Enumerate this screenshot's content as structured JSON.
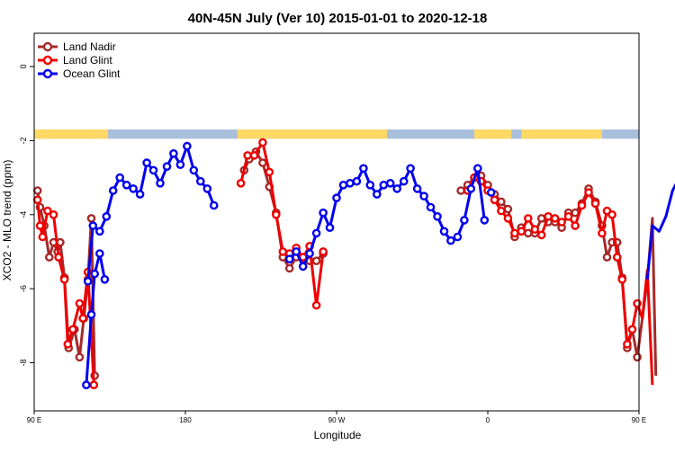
{
  "chart_data": {
    "type": "line",
    "title": "40N-45N July (Ver 10)   2015-01-01 to 2020-12-18",
    "xlabel": "Longitude",
    "ylabel": "XCO2 - MLO trend (ppm)",
    "xlim": [
      90,
      450
    ],
    "ylim": [
      -9.3,
      0.9
    ],
    "x_ticks": [
      {
        "value": 90,
        "label": "90 E"
      },
      {
        "value": 180,
        "label": "180"
      },
      {
        "value": 270,
        "label": "90 W"
      },
      {
        "value": 360,
        "label": "0"
      },
      {
        "value": 450,
        "label": "90 E"
      },
      {
        "value": 540,
        "label": "180"
      }
    ],
    "y_ticks": [
      {
        "value": 0,
        "label": "0"
      },
      {
        "value": -2,
        "label": "-2"
      },
      {
        "value": -4,
        "label": "-4"
      },
      {
        "value": -6,
        "label": "-6"
      },
      {
        "value": -8,
        "label": "-8"
      }
    ],
    "grid": false,
    "legend_position": "top-left",
    "land_mask_strip": {
      "y_range": [
        -1.95,
        -1.7
      ],
      "land_color": "#ffd966",
      "ocean_color": "#a8bfdc",
      "land_segments_lon": [
        [
          90,
          134
        ],
        [
          211,
          300
        ],
        [
          352,
          374
        ],
        [
          380,
          428
        ],
        [
          450,
          494
        ]
      ]
    },
    "series": [
      {
        "name": "Land Nadir",
        "color": "#a52a2a",
        "segments": [
          [
            [
              92,
              -3.35
            ],
            [
              93.5,
              -3.8
            ],
            [
              96,
              -4.3
            ],
            [
              99,
              -5.15
            ],
            [
              101.5,
              -4.75
            ],
            [
              104,
              -5.0
            ],
            [
              105.5,
              -4.75
            ],
            [
              108,
              -5.7
            ],
            [
              110.5,
              -7.6
            ],
            [
              114,
              -7.1
            ],
            [
              117,
              -7.85
            ],
            [
              119.5,
              -6.8
            ],
            [
              122,
              -5.75
            ],
            [
              124,
              -4.1
            ],
            [
              126,
              -8.35
            ]
          ],
          [
            [
              215,
              -2.8
            ],
            [
              218,
              -2.5
            ],
            [
              222,
              -2.3
            ],
            [
              226,
              -2.6
            ],
            [
              230,
              -3.25
            ],
            [
              234,
              -3.95
            ],
            [
              238,
              -5.15
            ],
            [
              242,
              -5.45
            ],
            [
              246,
              -5.15
            ],
            [
              250,
              -5.2
            ],
            [
              254,
              -5.25
            ],
            [
              258,
              -5.25
            ],
            [
              262,
              -5.05
            ]
          ],
          [
            [
              344,
              -3.35
            ],
            [
              348,
              -3.2
            ],
            [
              352,
              -3.0
            ],
            [
              356,
              -2.95
            ],
            [
              360,
              -3.2
            ],
            [
              364,
              -3.45
            ],
            [
              368,
              -3.65
            ],
            [
              372,
              -3.85
            ],
            [
              376,
              -4.6
            ],
            [
              380,
              -4.35
            ],
            [
              384,
              -4.5
            ],
            [
              388,
              -4.5
            ],
            [
              392,
              -4.1
            ],
            [
              396,
              -4.2
            ],
            [
              400,
              -4.2
            ],
            [
              404,
              -4.35
            ],
            [
              408,
              -3.95
            ],
            [
              412,
              -3.95
            ],
            [
              416,
              -3.7
            ],
            [
              420,
              -3.3
            ],
            [
              424,
              -3.65
            ],
            [
              428,
              -4.3
            ],
            [
              431,
              -5.15
            ],
            [
              434,
              -4.75
            ],
            [
              437,
              -4.75
            ],
            [
              440,
              -5.7
            ],
            [
              443,
              -7.6
            ],
            [
              446,
              -7.1
            ],
            [
              449,
              -7.85
            ],
            [
              452,
              -6.8
            ],
            [
              455,
              -5.75
            ],
            [
              458,
              -4.1
            ],
            [
              460,
              -8.35
            ]
          ]
        ]
      },
      {
        "name": "Land Glint",
        "color": "#ee0000",
        "segments": [
          [
            [
              92,
              -3.6
            ],
            [
              93.5,
              -4.3
            ],
            [
              95,
              -4.6
            ],
            [
              98,
              -3.9
            ],
            [
              101.5,
              -4.0
            ],
            [
              104.5,
              -5.15
            ],
            [
              108,
              -5.75
            ],
            [
              110,
              -7.5
            ],
            [
              113,
              -7.1
            ],
            [
              117,
              -6.4
            ],
            [
              119,
              -6.8
            ],
            [
              122,
              -5.55
            ],
            [
              125.5,
              -8.6
            ]
          ],
          [
            [
              213,
              -3.15
            ],
            [
              217,
              -2.4
            ],
            [
              221,
              -2.4
            ],
            [
              226,
              -2.05
            ],
            [
              230,
              -2.85
            ],
            [
              234,
              -4.0
            ],
            [
              238,
              -5.0
            ],
            [
              242,
              -5.05
            ],
            [
              246,
              -4.9
            ],
            [
              250,
              -5.15
            ],
            [
              254,
              -4.85
            ],
            [
              258,
              -6.45
            ],
            [
              262,
              -5.0
            ]
          ],
          [
            [
              348,
              -3.35
            ],
            [
              352,
              -3.0
            ],
            [
              356,
              -3.1
            ],
            [
              360,
              -3.35
            ],
            [
              364,
              -3.6
            ],
            [
              368,
              -3.9
            ],
            [
              372,
              -4.1
            ],
            [
              376,
              -4.5
            ],
            [
              380,
              -4.45
            ],
            [
              384,
              -4.1
            ],
            [
              388,
              -4.4
            ],
            [
              392,
              -4.55
            ],
            [
              396,
              -4.05
            ],
            [
              400,
              -4.1
            ],
            [
              404,
              -4.2
            ],
            [
              408,
              -4.05
            ],
            [
              412,
              -4.3
            ],
            [
              416,
              -3.75
            ],
            [
              420,
              -3.4
            ],
            [
              424,
              -3.7
            ],
            [
              428,
              -4.5
            ],
            [
              431,
              -3.9
            ],
            [
              434,
              -4.0
            ],
            [
              437,
              -5.15
            ],
            [
              440,
              -5.75
            ],
            [
              443,
              -7.5
            ],
            [
              446,
              -7.1
            ],
            [
              449,
              -6.4
            ],
            [
              452,
              -6.8
            ],
            [
              455,
              -5.5
            ],
            [
              458,
              -8.6
            ]
          ]
        ]
      },
      {
        "name": "Ocean Glint",
        "color": "#0000ee",
        "segments": [
          [
            [
              122,
              -5.8
            ],
            [
              125,
              -4.3
            ],
            [
              129,
              -4.45
            ],
            [
              133,
              -4.05
            ],
            [
              137,
              -3.35
            ],
            [
              141,
              -3.0
            ],
            [
              145,
              -3.2
            ],
            [
              149,
              -3.3
            ],
            [
              153,
              -3.45
            ],
            [
              157,
              -2.6
            ],
            [
              161,
              -2.8
            ],
            [
              165,
              -3.15
            ],
            [
              169,
              -2.7
            ],
            [
              173,
              -2.35
            ],
            [
              177,
              -2.65
            ],
            [
              181,
              -2.15
            ],
            [
              185,
              -2.8
            ],
            [
              189,
              -3.1
            ],
            [
              193,
              -3.3
            ],
            [
              197,
              -3.75
            ]
          ],
          [
            [
              242,
              -5.2
            ],
            [
              246,
              -5.0
            ],
            [
              250,
              -5.4
            ],
            [
              254,
              -5.05
            ],
            [
              258,
              -4.5
            ],
            [
              262,
              -3.95
            ],
            [
              266,
              -4.35
            ],
            [
              270,
              -3.55
            ],
            [
              274,
              -3.2
            ],
            [
              278,
              -3.15
            ],
            [
              282,
              -3.1
            ],
            [
              286,
              -2.75
            ],
            [
              290,
              -3.2
            ],
            [
              294,
              -3.45
            ],
            [
              298,
              -3.2
            ],
            [
              302,
              -3.15
            ],
            [
              306,
              -3.3
            ],
            [
              310,
              -3.1
            ],
            [
              314,
              -2.75
            ],
            [
              318,
              -3.3
            ],
            [
              322,
              -3.5
            ],
            [
              326,
              -3.8
            ],
            [
              330,
              -4.05
            ],
            [
              334,
              -4.45
            ],
            [
              338,
              -4.7
            ],
            [
              342,
              -4.6
            ],
            [
              346,
              -4.15
            ],
            [
              350,
              -3.3
            ],
            [
              354,
              -2.75
            ],
            [
              358,
              -4.15
            ]
          ],
          [
            [
              362,
              -3.4
            ]
          ],
          [
            [
              121,
              -8.6
            ],
            [
              124,
              -6.7
            ],
            [
              126,
              -5.6
            ],
            [
              129,
              -5.05
            ],
            [
              132,
              -5.75
            ]
          ],
          [
            [
              455,
              -5.75
            ],
            [
              458,
              -4.3
            ],
            [
              462,
              -4.45
            ],
            [
              466,
              -4.05
            ],
            [
              470,
              -3.35
            ],
            [
              474,
              -3.0
            ],
            [
              478,
              -3.2
            ],
            [
              482,
              -3.3
            ]
          ]
        ]
      }
    ]
  }
}
